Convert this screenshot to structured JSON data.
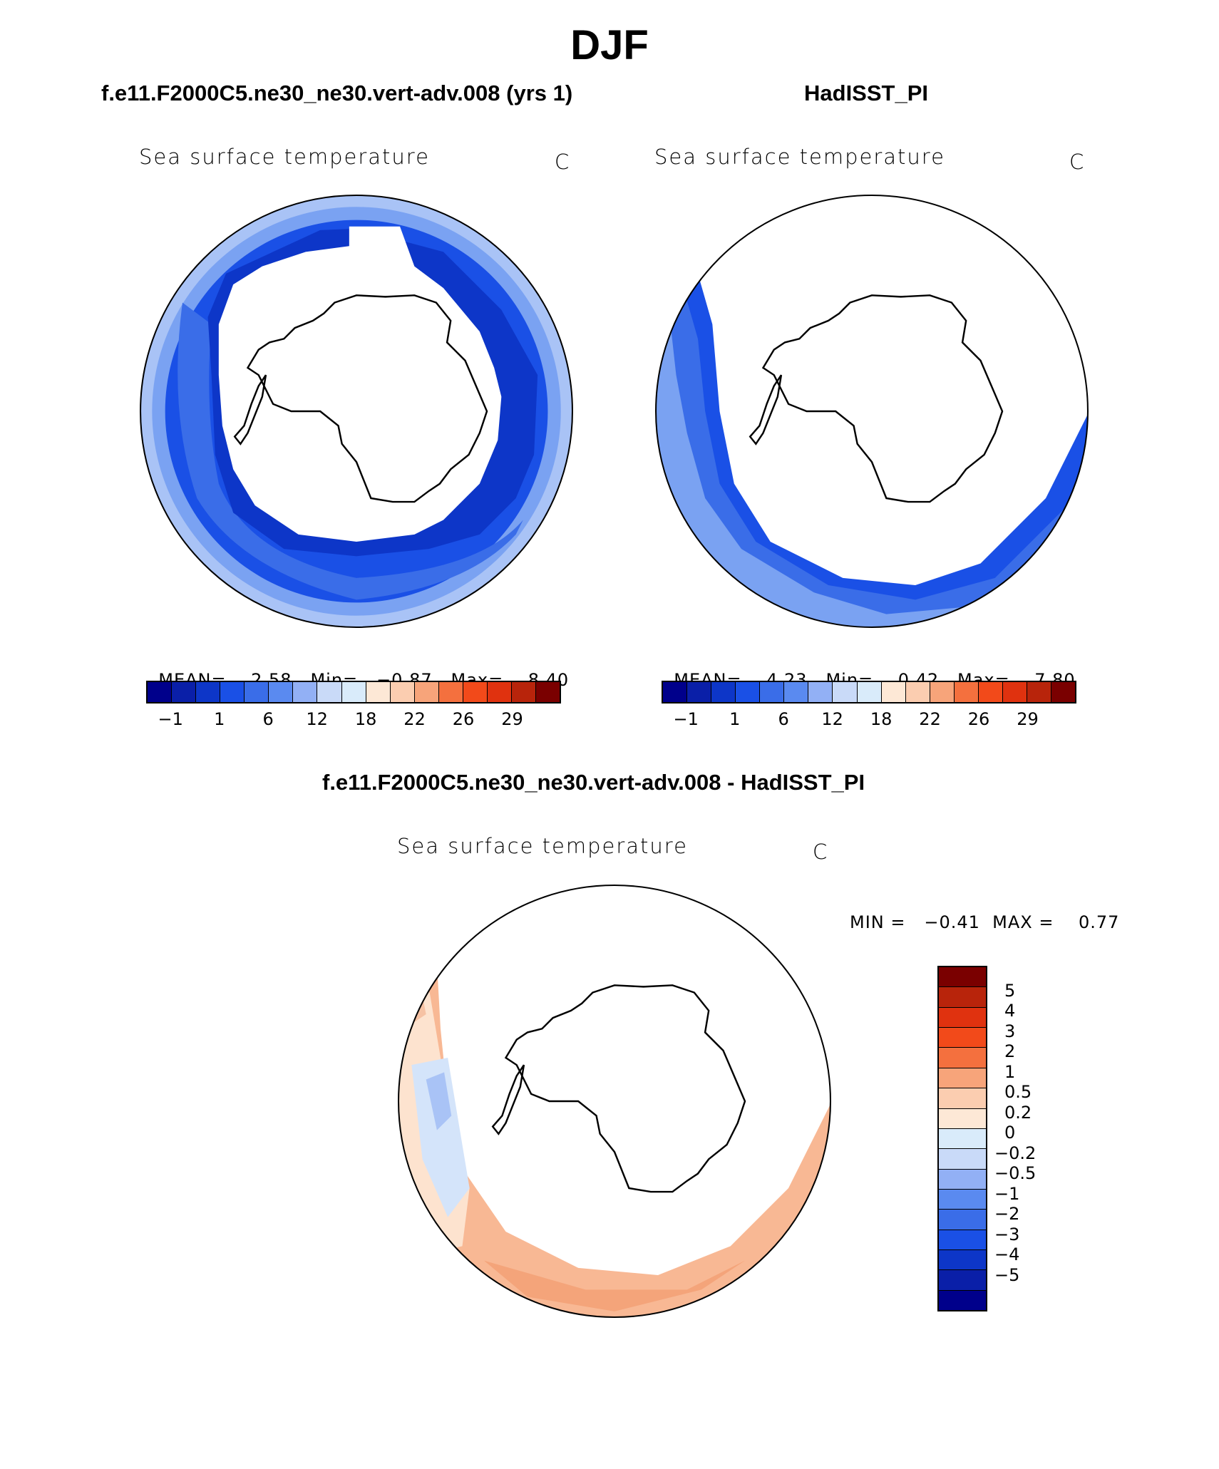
{
  "title": "DJF",
  "panels": [
    {
      "id": "model",
      "header": "f.e11.F2000C5.ne30_ne30.vert-adv.008 (yrs 1)",
      "subtitle": "Sea surface temperature",
      "units": "C",
      "stats": {
        "mean_label": "MEAN=",
        "mean": "2.58",
        "min_label": "Min=",
        "min": "−0.87",
        "max_label": "Max=",
        "max": "8.40"
      }
    },
    {
      "id": "obs",
      "header": "HadISST_PI",
      "subtitle": "Sea surface temperature",
      "units": "C",
      "stats": {
        "mean_label": "MEAN=",
        "mean": "4.23",
        "min_label": "Min=",
        "min": "0.42",
        "max_label": "Max=",
        "max": "7.80"
      }
    }
  ],
  "abs_colorbar": {
    "colors": [
      "#00008b",
      "#0a1fa8",
      "#0d36c8",
      "#1a50e6",
      "#3a6de8",
      "#5a8af0",
      "#92b0f5",
      "#c9daf8",
      "#d9ebfa",
      "#fde8d6",
      "#fbcdb0",
      "#f7a47a",
      "#f4703e",
      "#f24a1a",
      "#e0320f",
      "#b8240b",
      "#7a0000"
    ],
    "ticks": [
      "−1",
      "1",
      "6",
      "12",
      "18",
      "22",
      "26",
      "29"
    ]
  },
  "diff": {
    "header": "f.e11.F2000C5.ne30_ne30.vert-adv.008 - HadISST_PI",
    "subtitle": "Sea surface temperature",
    "units": "C",
    "minmax": "MIN =   −0.41  MAX =    0.77",
    "colorbar": {
      "colors": [
        "#7a0000",
        "#b8240b",
        "#e0320f",
        "#f24a1a",
        "#f4703e",
        "#f7a47a",
        "#fbcdb0",
        "#fde8d6",
        "#d9ebfa",
        "#c9daf8",
        "#92b0f5",
        "#5a8af0",
        "#3a6de8",
        "#1a50e6",
        "#0d36c8",
        "#0a1fa8",
        "#00008b"
      ],
      "ticks": [
        "5",
        "4",
        "3",
        "2",
        "1",
        "0.5",
        "0.2",
        "0",
        "−0.2",
        "−0.5",
        "−1",
        "−2",
        "−3",
        "−4",
        "−5"
      ]
    }
  },
  "colors": {
    "sst_cold": "#1a50e6",
    "sst_mid": "#3a6de8",
    "sst_warm": "#7aa2f2",
    "diff_pos": "#f8b894",
    "diff_neg": "#d4e4fa"
  }
}
